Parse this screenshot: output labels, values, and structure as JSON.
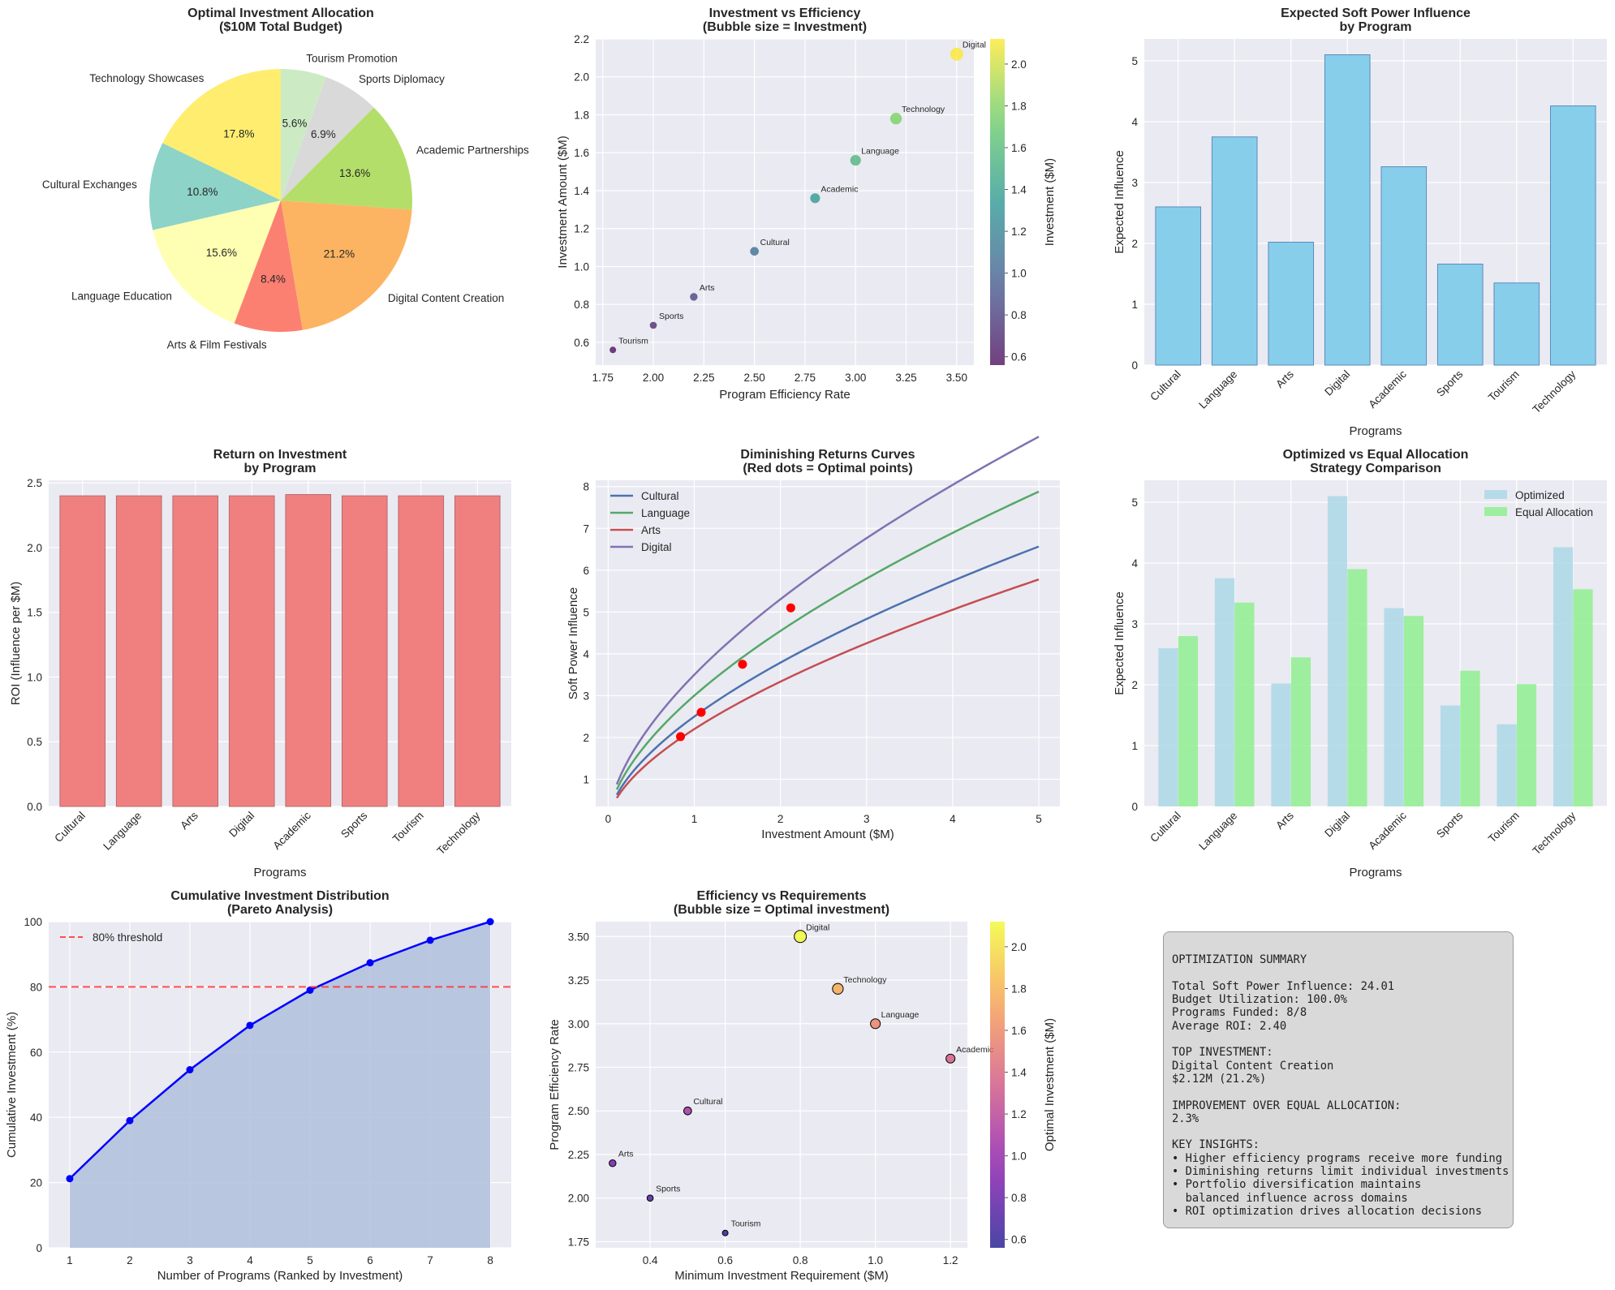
{
  "programs_short": [
    "Cultural",
    "Language",
    "Arts",
    "Digital",
    "Academic",
    "Sports",
    "Tourism",
    "Technology"
  ],
  "colors": {
    "background": "#ffffff",
    "axes_bg": "#eaeaf2",
    "grid": "#ffffff",
    "bar_influence": "#87ceeb",
    "bar_influence_edge": "#5b8bbf",
    "bar_roi": "#f08080",
    "bar_roi_edge": "#b86a6a",
    "optimized": "#add8e6",
    "equal": "#90ee90",
    "pareto_line": "#0000ff",
    "pareto_fill": "#b0bfdc",
    "threshold": "#ff3333",
    "optimal_dot": "#ff0000"
  },
  "pie": {
    "title": "Optimal Investment Allocation",
    "subtitle": "($10M Total Budget)",
    "chart_data": {
      "type": "pie",
      "labels": [
        "Technology Showcases",
        "Cultural Exchanges",
        "Language Education",
        "Arts & Film Festivals",
        "Digital Content Creation",
        "Academic Partnerships",
        "Sports Diplomacy",
        "Tourism Promotion"
      ],
      "values": [
        17.8,
        10.8,
        15.6,
        8.4,
        21.2,
        13.6,
        6.9,
        5.6
      ],
      "pct_labels": [
        "17.8%",
        "10.8%",
        "15.6%",
        "8.4%",
        "21.2%",
        "13.6%",
        "6.9%",
        "5.6%"
      ],
      "colors": [
        "#ffed6f",
        "#8dd3c7",
        "#ffffb3",
        "#fb8072",
        "#fdb462",
        "#b3de69",
        "#d9d9d9",
        "#ccebc5"
      ],
      "start_angle": 90,
      "direction": "counterclockwise"
    }
  },
  "bubble1": {
    "title": "Investment vs Efficiency",
    "subtitle": "(Bubble size = Investment)",
    "colorbar_label": "Investment ($M)",
    "chart_data": {
      "type": "scatter",
      "xlabel": "Program Efficiency Rate",
      "ylabel": "Investment Amount ($M)",
      "xlim": [
        1.715,
        3.585
      ],
      "ylim": [
        0.48,
        2.2
      ],
      "xticks": [
        1.75,
        2.0,
        2.25,
        2.5,
        2.75,
        3.0,
        3.25,
        3.5
      ],
      "xtick_labels": [
        "1.75",
        "2.00",
        "2.25",
        "2.50",
        "2.75",
        "3.00",
        "3.25",
        "3.50"
      ],
      "yticks": [
        0.6,
        0.8,
        1.0,
        1.2,
        1.4,
        1.6,
        1.8,
        2.0,
        2.2
      ],
      "ytick_labels": [
        "0.6",
        "0.8",
        "1.0",
        "1.2",
        "1.4",
        "1.6",
        "1.8",
        "2.0",
        "2.2"
      ],
      "cbar_range": [
        0.56,
        2.12
      ],
      "cbar_ticks": [
        "0.6",
        "0.8",
        "1.0",
        "1.2",
        "1.4",
        "1.6",
        "1.8",
        "2.0"
      ],
      "cbar_tick_values": [
        0.6,
        0.8,
        1.0,
        1.2,
        1.4,
        1.6,
        1.8,
        2.0
      ],
      "points": [
        {
          "label": "Tourism",
          "x": 1.8,
          "y": 0.56
        },
        {
          "label": "Sports",
          "x": 2.0,
          "y": 0.69
        },
        {
          "label": "Arts",
          "x": 2.2,
          "y": 0.84
        },
        {
          "label": "Cultural",
          "x": 2.5,
          "y": 1.08
        },
        {
          "label": "Academic",
          "x": 2.8,
          "y": 1.36
        },
        {
          "label": "Language",
          "x": 3.0,
          "y": 1.56
        },
        {
          "label": "Technology",
          "x": 3.2,
          "y": 1.78
        },
        {
          "label": "Digital",
          "x": 3.5,
          "y": 2.12
        }
      ]
    }
  },
  "influence": {
    "title": "Expected Soft Power Influence",
    "subtitle": "by Program",
    "chart_data": {
      "type": "bar",
      "xlabel": "Programs",
      "ylabel": "Expected Influence",
      "categories": [
        "Cultural",
        "Language",
        "Arts",
        "Digital",
        "Academic",
        "Sports",
        "Tourism",
        "Technology"
      ],
      "values": [
        2.6,
        3.75,
        2.02,
        5.1,
        3.26,
        1.66,
        1.35,
        4.26
      ],
      "ylim": [
        0,
        5.36
      ],
      "yticks": [
        0,
        1,
        2,
        3,
        4,
        5
      ],
      "ytick_labels": [
        "0",
        "1",
        "2",
        "3",
        "4",
        "5"
      ]
    }
  },
  "roi": {
    "title": "Return on Investment",
    "subtitle": "by Program",
    "chart_data": {
      "type": "bar",
      "xlabel": "Programs",
      "ylabel": "ROI (Influence per $M)",
      "categories": [
        "Cultural",
        "Language",
        "Arts",
        "Digital",
        "Academic",
        "Sports",
        "Tourism",
        "Technology"
      ],
      "values": [
        2.4,
        2.4,
        2.4,
        2.4,
        2.41,
        2.4,
        2.4,
        2.4
      ],
      "ylim": [
        0,
        2.52
      ],
      "yticks": [
        0,
        0.5,
        1.0,
        1.5,
        2.0,
        2.5
      ],
      "ytick_labels": [
        "0.0",
        "0.5",
        "1.0",
        "1.5",
        "2.0",
        "2.5"
      ]
    }
  },
  "curves": {
    "title": "Diminishing Returns Curves",
    "subtitle": "(Red dots = Optimal points)",
    "chart_data": {
      "type": "line",
      "xlabel": "Investment Amount ($M)",
      "ylabel": "Soft Power Influence",
      "xlim": [
        -0.145,
        5.245
      ],
      "ylim": [
        0.35,
        8.15
      ],
      "xticks": [
        0,
        1,
        2,
        3,
        4,
        5
      ],
      "xtick_labels": [
        "0",
        "1",
        "2",
        "3",
        "4",
        "5"
      ],
      "yticks": [
        1,
        2,
        3,
        4,
        5,
        6,
        7,
        8
      ],
      "ytick_labels": [
        "1",
        "2",
        "3",
        "4",
        "5",
        "6",
        "7",
        "8"
      ],
      "x_range": [
        0.1,
        5.0
      ],
      "exponent": 0.6,
      "series": [
        {
          "name": "Cultural",
          "color": "#4c72b0",
          "coef": 2.5,
          "optimal_x": 1.08,
          "optimal_y": 2.6
        },
        {
          "name": "Language",
          "color": "#55a868",
          "coef": 3.0,
          "optimal_x": 1.56,
          "optimal_y": 3.75
        },
        {
          "name": "Arts",
          "color": "#c44e52",
          "coef": 2.2,
          "optimal_x": 0.84,
          "optimal_y": 2.02
        },
        {
          "name": "Digital",
          "color": "#8172b2",
          "coef": 3.5,
          "optimal_x": 2.12,
          "optimal_y": 5.1
        }
      ]
    }
  },
  "comparison": {
    "title": "Optimized vs Equal Allocation",
    "subtitle": "Strategy Comparison",
    "chart_data": {
      "type": "bar",
      "xlabel": "Programs",
      "ylabel": "Expected Influence",
      "categories": [
        "Cultural",
        "Language",
        "Arts",
        "Digital",
        "Academic",
        "Sports",
        "Tourism",
        "Technology"
      ],
      "series": [
        {
          "name": "Optimized",
          "values": [
            2.6,
            3.75,
            2.02,
            5.1,
            3.26,
            1.66,
            1.35,
            4.26
          ]
        },
        {
          "name": "Equal Allocation",
          "values": [
            2.8,
            3.35,
            2.45,
            3.9,
            3.13,
            2.23,
            2.01,
            3.57
          ]
        }
      ],
      "ylim": [
        0,
        5.36
      ],
      "yticks": [
        0,
        1,
        2,
        3,
        4,
        5
      ],
      "ytick_labels": [
        "0",
        "1",
        "2",
        "3",
        "4",
        "5"
      ]
    }
  },
  "pareto": {
    "title": "Cumulative Investment Distribution",
    "subtitle": "(Pareto Analysis)",
    "legend": "80% threshold",
    "chart_data": {
      "type": "area",
      "xlabel": "Number of Programs (Ranked by Investment)",
      "ylabel": "Cumulative Investment (%)",
      "x": [
        1,
        2,
        3,
        4,
        5,
        6,
        7,
        8
      ],
      "values": [
        21.2,
        39.0,
        54.6,
        68.2,
        79.0,
        87.4,
        94.3,
        100.0
      ],
      "threshold": 80,
      "xlim": [
        0.65,
        8.35
      ],
      "ylim": [
        0,
        100
      ],
      "xticks": [
        1,
        2,
        3,
        4,
        5,
        6,
        7,
        8
      ],
      "xtick_labels": [
        "1",
        "2",
        "3",
        "4",
        "5",
        "6",
        "7",
        "8"
      ],
      "yticks": [
        0,
        20,
        40,
        60,
        80,
        100
      ],
      "ytick_labels": [
        "0",
        "20",
        "40",
        "60",
        "80",
        "100"
      ]
    }
  },
  "bubble2": {
    "title": "Efficiency vs Requirements",
    "subtitle": "(Bubble size = Optimal investment)",
    "colorbar_label": "Optimal Investment ($M)",
    "chart_data": {
      "type": "scatter",
      "xlabel": "Minimum Investment Requirement ($M)",
      "ylabel": "Program Efficiency Rate",
      "xlim": [
        0.255,
        1.245
      ],
      "ylim": [
        1.715,
        3.585
      ],
      "xticks": [
        0.4,
        0.6,
        0.8,
        1.0,
        1.2
      ],
      "xtick_labels": [
        "0.4",
        "0.6",
        "0.8",
        "1.0",
        "1.2"
      ],
      "yticks": [
        1.75,
        2.0,
        2.25,
        2.5,
        2.75,
        3.0,
        3.25,
        3.5
      ],
      "ytick_labels": [
        "1.75",
        "2.00",
        "2.25",
        "2.50",
        "2.75",
        "3.00",
        "3.25",
        "3.50"
      ],
      "cbar_range": [
        0.56,
        2.12
      ],
      "cbar_ticks": [
        "0.6",
        "0.8",
        "1.0",
        "1.2",
        "1.4",
        "1.6",
        "1.8",
        "2.0"
      ],
      "cbar_tick_values": [
        0.6,
        0.8,
        1.0,
        1.2,
        1.4,
        1.6,
        1.8,
        2.0
      ],
      "points": [
        {
          "label": "Digital",
          "x": 0.8,
          "y": 3.5,
          "value": 2.12
        },
        {
          "label": "Technology",
          "x": 0.9,
          "y": 3.2,
          "value": 1.78
        },
        {
          "label": "Language",
          "x": 1.0,
          "y": 3.0,
          "value": 1.56
        },
        {
          "label": "Academic",
          "x": 1.2,
          "y": 2.8,
          "value": 1.36
        },
        {
          "label": "Cultural",
          "x": 0.5,
          "y": 2.5,
          "value": 1.08
        },
        {
          "label": "Arts",
          "x": 0.3,
          "y": 2.2,
          "value": 0.84
        },
        {
          "label": "Sports",
          "x": 0.4,
          "y": 2.0,
          "value": 0.69
        },
        {
          "label": "Tourism",
          "x": 0.6,
          "y": 1.8,
          "value": 0.56
        }
      ]
    }
  },
  "summary": {
    "lines": [
      "",
      "OPTIMIZATION SUMMARY",
      "",
      "Total Soft Power Influence: 24.01",
      "Budget Utilization: 100.0%",
      "Programs Funded: 8/8",
      "Average ROI: 2.40",
      "",
      "TOP INVESTMENT:",
      "Digital Content Creation",
      "$2.12M (21.2%)",
      "",
      "IMPROVEMENT OVER EQUAL ALLOCATION:",
      "2.3%",
      "",
      "KEY INSIGHTS:",
      "• Higher efficiency programs receive more funding",
      "• Diminishing returns limit individual investments",
      "• Portfolio diversification maintains",
      "  balanced influence across domains",
      "• ROI optimization drives allocation decisions"
    ]
  }
}
